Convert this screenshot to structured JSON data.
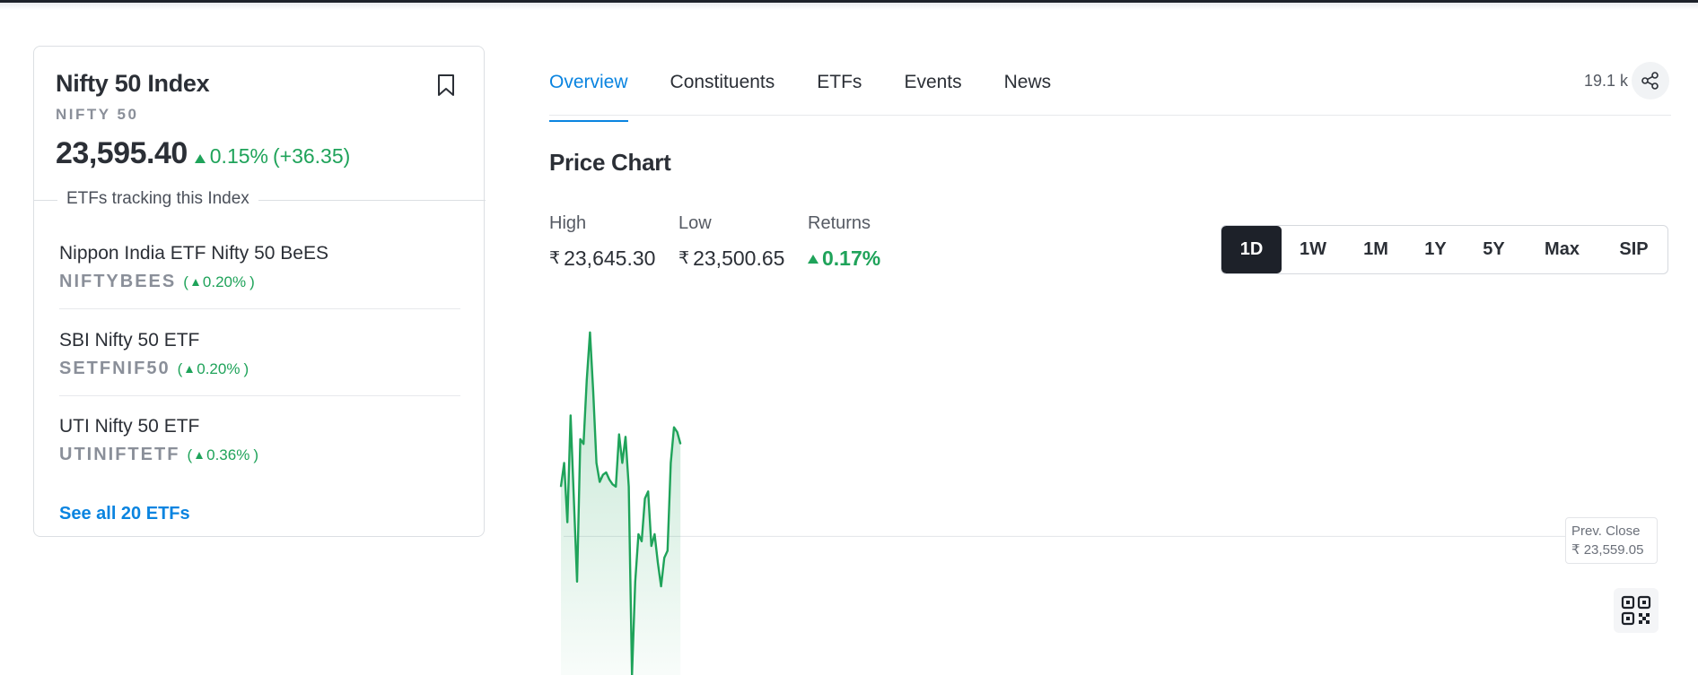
{
  "colors": {
    "accent": "#0a84e0",
    "positive": "#1fa35a",
    "dark": "#1d2129"
  },
  "index": {
    "title": "Nifty 50 Index",
    "symbol": "NIFTY 50",
    "price": "23,595.40",
    "change_pct": "0.15%",
    "change_abs": "(+36.35)"
  },
  "etf_section": {
    "label": "ETFs tracking this Index",
    "items": [
      {
        "name": "Nippon India ETF Nifty 50 BeES",
        "symbol": "NIFTYBEES",
        "change": "0.20%"
      },
      {
        "name": "SBI Nifty 50 ETF",
        "symbol": "SETFNIF50",
        "change": "0.20%"
      },
      {
        "name": "UTI Nifty 50 ETF",
        "symbol": "UTINIFTETF",
        "change": "0.36%"
      }
    ],
    "see_all": "See all 20 ETFs"
  },
  "tabs": [
    {
      "label": "Overview",
      "active": true
    },
    {
      "label": "Constituents",
      "active": false
    },
    {
      "label": "ETFs",
      "active": false
    },
    {
      "label": "Events",
      "active": false
    },
    {
      "label": "News",
      "active": false
    }
  ],
  "views": "19.1 k",
  "price_chart": {
    "title": "Price Chart",
    "high_label": "High",
    "high_value": "23,645.30",
    "low_label": "Low",
    "low_value": "23,500.65",
    "returns_label": "Returns",
    "returns_value": "0.17%",
    "currency": "₹",
    "ranges": [
      {
        "label": "1D",
        "active": true
      },
      {
        "label": "1W",
        "active": false
      },
      {
        "label": "1M",
        "active": false
      },
      {
        "label": "1Y",
        "active": false
      },
      {
        "label": "5Y",
        "active": false
      },
      {
        "label": "Max",
        "active": false
      },
      {
        "label": "SIP",
        "active": false
      }
    ],
    "prev_close_label": "Prev. Close",
    "prev_close_value": "₹ 23,559.05"
  },
  "chart_data": {
    "type": "area",
    "series": [
      {
        "values": [
          23580,
          23590,
          23565,
          23610,
          23575,
          23540,
          23600,
          23598,
          23625,
          23645,
          23620,
          23590,
          23582,
          23585,
          23586,
          23583,
          23581,
          23580,
          23602,
          23590,
          23601,
          23580,
          23500.65,
          23540,
          23560,
          23557,
          23575,
          23578,
          23555,
          23560,
          23548,
          23538,
          23550,
          23553,
          23590,
          23605,
          23603,
          23598
        ]
      }
    ],
    "baseline": 23559.05,
    "ylim": [
      23500.65,
      23645.3
    ]
  }
}
